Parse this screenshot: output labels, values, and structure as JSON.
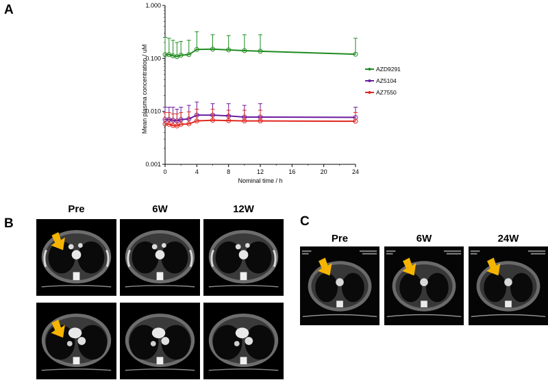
{
  "panels": {
    "a": "A",
    "b": "B",
    "c": "C"
  },
  "chart_data": {
    "type": "line",
    "xlabel": "Nominal time / h",
    "ylabel": "Mean plasma concentration / uM",
    "yscale": "log",
    "ylim": [
      0.001,
      1.0
    ],
    "xlim": [
      0,
      24
    ],
    "xticks": [
      "0",
      "4",
      "8",
      "12",
      "16",
      "20",
      "24"
    ],
    "yticks": [
      "0.001",
      "0.010",
      "0.100",
      "1.000"
    ],
    "legend_position": "right",
    "grid": false,
    "series": [
      {
        "name": "AZD9291",
        "color": "#1e8a1e",
        "x": [
          0,
          0.5,
          1,
          1.5,
          2,
          3,
          4,
          6,
          8,
          10,
          12,
          24
        ],
        "y": [
          0.118,
          0.118,
          0.112,
          0.108,
          0.115,
          0.118,
          0.148,
          0.15,
          0.145,
          0.14,
          0.137,
          0.12
        ],
        "err_hi": [
          0.25,
          0.24,
          0.22,
          0.2,
          0.21,
          0.22,
          0.32,
          0.28,
          0.27,
          0.28,
          0.28,
          0.24
        ]
      },
      {
        "name": "AZ5104",
        "color": "#6a1a9e",
        "x": [
          0,
          0.5,
          1,
          1.5,
          2,
          3,
          4,
          6,
          8,
          10,
          12,
          24
        ],
        "y": [
          0.007,
          0.007,
          0.0068,
          0.0066,
          0.007,
          0.0072,
          0.0085,
          0.0085,
          0.0082,
          0.0078,
          0.0078,
          0.0077
        ],
        "err_hi": [
          0.012,
          0.012,
          0.012,
          0.011,
          0.012,
          0.013,
          0.015,
          0.014,
          0.014,
          0.013,
          0.014,
          0.012
        ]
      },
      {
        "name": "AZ7550",
        "color": "#e0261f",
        "x": [
          0,
          0.5,
          1,
          1.5,
          2,
          3,
          4,
          6,
          8,
          10,
          12,
          24
        ],
        "y": [
          0.0058,
          0.0057,
          0.0054,
          0.0053,
          0.0057,
          0.0058,
          0.0066,
          0.0068,
          0.0067,
          0.0066,
          0.0066,
          0.0065
        ],
        "err_hi": [
          0.0095,
          0.0095,
          0.009,
          0.009,
          0.0095,
          0.0098,
          0.011,
          0.011,
          0.0105,
          0.0105,
          0.0105,
          0.0095
        ]
      }
    ]
  },
  "panel_b": {
    "labels": [
      "Pre",
      "6W",
      "12W"
    ]
  },
  "panel_c": {
    "labels": [
      "Pre",
      "6W",
      "24W"
    ]
  },
  "colors": {
    "arrow": "#f5b400"
  }
}
